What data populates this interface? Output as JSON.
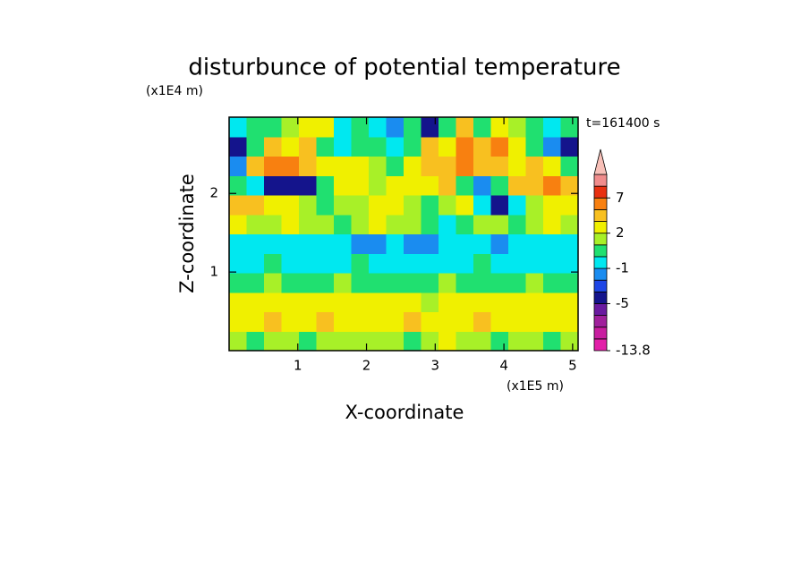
{
  "chart_data": {
    "type": "contour",
    "title": "disturbunce of potential temperature",
    "x_label": "X-coordinate",
    "y_label": "Z-coordinate",
    "x_unit": "(x1E5 m)",
    "y_unit": "(x1E4 m)",
    "annotation": "t=161400 s",
    "xlim": [
      0,
      5.08
    ],
    "ylim": [
      0,
      2.97
    ],
    "xticks": [
      1,
      2,
      3,
      4,
      5
    ],
    "yticks": [
      1,
      2
    ],
    "z": [
      [
        1,
        0.5,
        1.5,
        1.5,
        0.5,
        1.5,
        1,
        1.5,
        1,
        1.5,
        0.5,
        1.5,
        2.5,
        1,
        1.5,
        0.5,
        1.5,
        1,
        0.5,
        1.5
      ],
      [
        2.5,
        2.5,
        3.5,
        2.5,
        2.5,
        3.5,
        2.5,
        2.5,
        2.5,
        2.5,
        3.5,
        2.5,
        2.5,
        2.5,
        3.5,
        2.5,
        2.5,
        2.5,
        2.5,
        2.5
      ],
      [
        2.5,
        2.5,
        2.5,
        2.5,
        2.5,
        2.5,
        2.5,
        2.5,
        2.5,
        2.5,
        2.5,
        1.5,
        2.5,
        2.5,
        2.5,
        2.5,
        2.5,
        2.5,
        2.5,
        2.5
      ],
      [
        0.5,
        0.5,
        1.5,
        0.5,
        0.5,
        0.5,
        1.5,
        0.5,
        0.5,
        0.5,
        0.5,
        0.5,
        1.5,
        0.5,
        0.5,
        0.5,
        0.5,
        1.5,
        0.5,
        0.5
      ],
      [
        -0.5,
        -0.5,
        0.5,
        -0.5,
        -0.5,
        -0.5,
        -0.5,
        0.5,
        -0.5,
        -0.5,
        -0.5,
        -0.5,
        -0.5,
        -0.5,
        0.5,
        -0.5,
        -0.5,
        -0.5,
        -0.5,
        -0.5
      ],
      [
        -0.5,
        -0.5,
        -0.5,
        -0.5,
        -0.5,
        -0.5,
        -0.5,
        -1.5,
        -1.5,
        -0.5,
        -1.5,
        -1.5,
        -0.5,
        -0.5,
        -0.5,
        -1.5,
        -0.5,
        -0.5,
        -0.5,
        -0.5
      ],
      [
        2.5,
        1.5,
        1.5,
        2.5,
        1.5,
        1.5,
        0.5,
        1.5,
        2.5,
        1.5,
        1.5,
        0.5,
        -0.5,
        0.5,
        1.5,
        1.5,
        0.5,
        1.5,
        2.5,
        1.5
      ],
      [
        4,
        4,
        2.5,
        2.5,
        1.5,
        0.5,
        1.5,
        1.5,
        2.5,
        2.5,
        1.5,
        0.5,
        1.5,
        2.5,
        -0.5,
        -4,
        -0.5,
        1.5,
        2.5,
        2.5
      ],
      [
        0.5,
        -0.5,
        -4,
        -4,
        -4,
        0.5,
        2.5,
        2.5,
        1.5,
        2.5,
        2.5,
        2.5,
        4,
        0.5,
        -1.5,
        0.5,
        4,
        4,
        6,
        4
      ],
      [
        -1.5,
        4,
        6,
        6,
        4,
        2.5,
        2.5,
        2.5,
        1.5,
        0.5,
        2.5,
        4,
        4,
        6,
        4,
        4,
        2.5,
        4,
        2.5,
        0.5
      ],
      [
        -4,
        0.5,
        4,
        2.5,
        4,
        0.5,
        -0.5,
        0.5,
        0.5,
        -0.5,
        0.5,
        4,
        2.5,
        6,
        4,
        6,
        2.5,
        0.5,
        -1.5,
        -4
      ],
      [
        -0.5,
        0.5,
        0.5,
        1.5,
        2.5,
        2.5,
        -0.5,
        0.5,
        -0.5,
        -1.5,
        0.5,
        -4,
        0.5,
        4,
        0.5,
        2.5,
        1.5,
        0.5,
        -0.5,
        0.5
      ]
    ],
    "colorbar": {
      "levels": [
        -13.8,
        -11,
        -9,
        -7,
        -5,
        -3,
        -2,
        -1,
        0,
        1,
        2,
        3,
        5,
        7,
        9,
        12
      ],
      "colors": [
        "#e21ea8",
        "#c81ea0",
        "#a0209c",
        "#6a1aa0",
        "#14148c",
        "#1e46e6",
        "#1a8cf0",
        "#00e8f0",
        "#20e070",
        "#a8f028",
        "#f0f000",
        "#f8c020",
        "#f88010",
        "#e83010",
        "#f08c8c"
      ],
      "extend_color": "#f8c0b8",
      "ticks": [
        7,
        2,
        -1,
        -5,
        -13.8
      ]
    }
  }
}
